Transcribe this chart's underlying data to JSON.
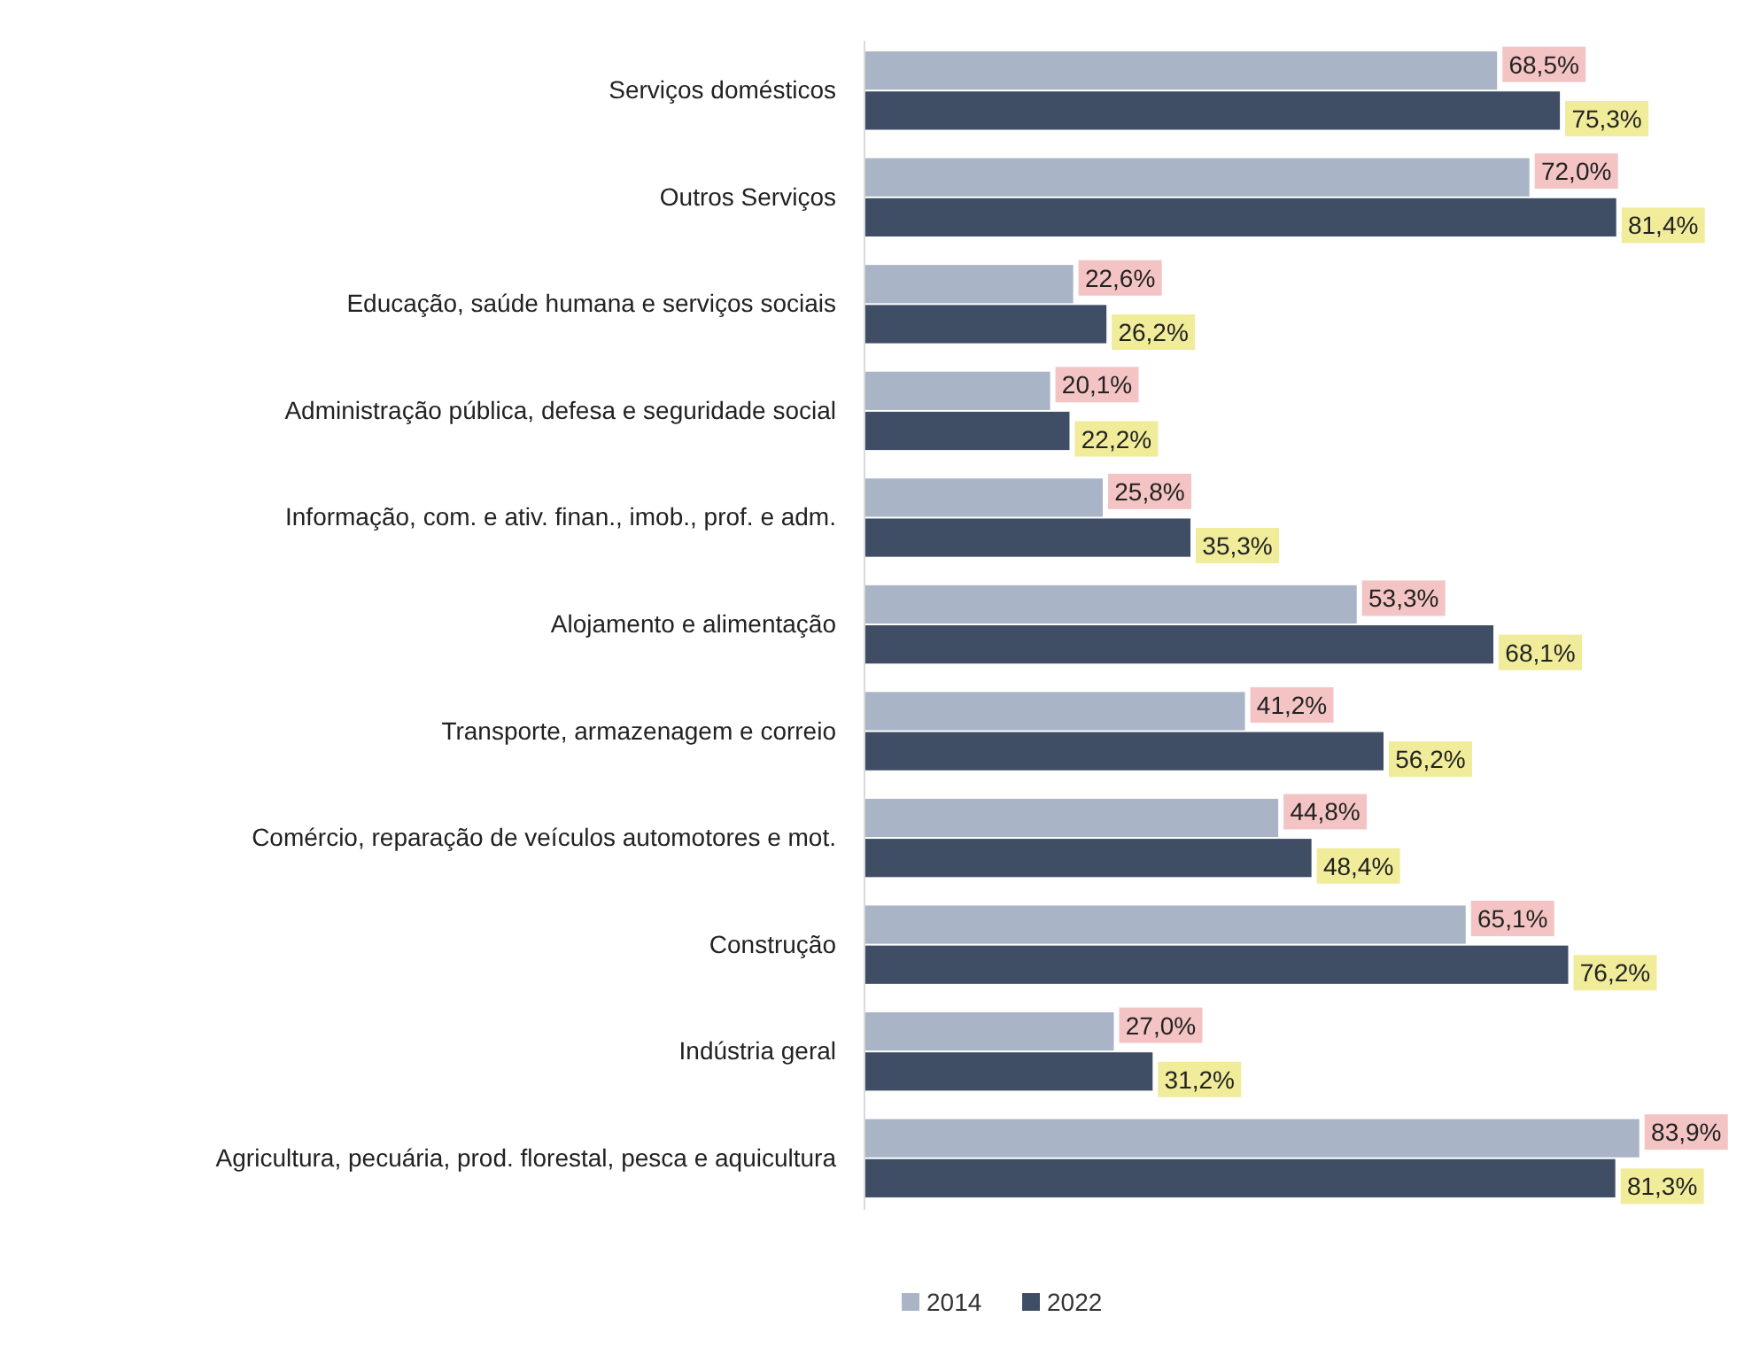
{
  "chart_data": {
    "type": "bar",
    "orientation": "horizontal",
    "categories": [
      "Serviços domésticos",
      "Outros Serviços",
      "Educação, saúde humana e serviços sociais",
      "Administração pública, defesa e seguridade social",
      "Informação, com. e ativ. finan., imob., prof. e adm.",
      "Alojamento e alimentação",
      "Transporte, armazenagem e correio",
      "Comércio, reparação de veículos automotores e mot.",
      "Construção",
      "Indústria geral",
      "Agricultura, pecuária, prod. florestal, pesca e aquicultura"
    ],
    "series": [
      {
        "name": "2014",
        "color": "#a9b4c6",
        "values": [
          68.5,
          72.0,
          22.6,
          20.1,
          25.8,
          53.3,
          41.2,
          44.8,
          65.1,
          27.0,
          83.9
        ],
        "value_labels": [
          "68,5%",
          "72,0%",
          "22,6%",
          "20,1%",
          "25,8%",
          "53,3%",
          "41,2%",
          "44,8%",
          "65,1%",
          "27,0%",
          "83,9%"
        ]
      },
      {
        "name": "2022",
        "color": "#3f4d65",
        "values": [
          75.3,
          81.4,
          26.2,
          22.2,
          35.3,
          68.1,
          56.2,
          48.4,
          76.2,
          31.2,
          81.3
        ],
        "value_labels": [
          "75,3%",
          "81,4%",
          "26,2%",
          "22,2%",
          "35,3%",
          "68,1%",
          "56,2%",
          "48,4%",
          "76,2%",
          "31,2%",
          "81,3%"
        ]
      }
    ],
    "legend": "bottom",
    "grid": false
  }
}
